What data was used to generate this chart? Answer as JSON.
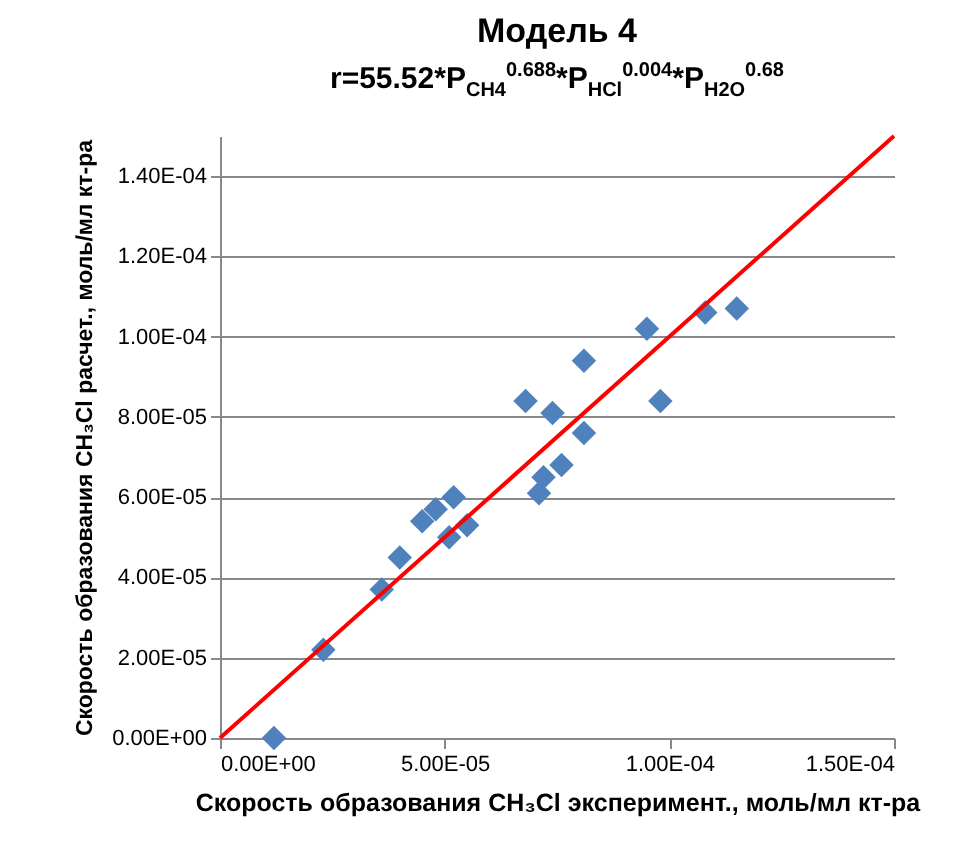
{
  "chart_data": {
    "type": "scatter",
    "title": "Модель 4",
    "subtitle": "r=55.52*P$_{CH4}$$^{0.688}$*P$_{HCl}$$^{0.004}$*P$_{H2O}$$^{0.68}$",
    "xlabel": "Скорость образования CH₃Cl эксперимент., моль/мл кт-ра",
    "ylabel": "Скорость образования CH₃Cl расчет., моль/мл кт-ра",
    "xlim": [
      0,
      0.00015
    ],
    "ylim": [
      0,
      0.00015
    ],
    "xticks": [
      {
        "value": 0,
        "label": "0.00E+00"
      },
      {
        "value": 5e-05,
        "label": "5.00E-05"
      },
      {
        "value": 0.0001,
        "label": "1.00E-04"
      },
      {
        "value": 0.00015,
        "label": "1.50E-04"
      }
    ],
    "yticks": [
      {
        "value": 0,
        "label": "0.00E+00"
      },
      {
        "value": 2e-05,
        "label": "2.00E-05"
      },
      {
        "value": 4e-05,
        "label": "4.00E-05"
      },
      {
        "value": 6e-05,
        "label": "6.00E-05"
      },
      {
        "value": 8e-05,
        "label": "8.00E-05"
      },
      {
        "value": 0.0001,
        "label": "1.00E-04"
      },
      {
        "value": 0.00012,
        "label": "1.20E-04"
      },
      {
        "value": 0.00014,
        "label": "1.40E-04"
      }
    ],
    "grid": "y",
    "series": [
      {
        "marker": "diamond",
        "color": "#4f81bd",
        "x": [
          1.2e-05,
          2.3e-05,
          3.6e-05,
          4e-05,
          4.5e-05,
          4.8e-05,
          5.2e-05,
          5.1e-05,
          5.5e-05,
          6.8e-05,
          7.1e-05,
          7.2e-05,
          7.6e-05,
          7.4e-05,
          8.1e-05,
          8.1e-05,
          9.5e-05,
          9.8e-05,
          0.000108,
          0.000115
        ],
        "values": [
          0,
          2.2e-05,
          3.7e-05,
          4.5e-05,
          5.4e-05,
          5.7e-05,
          6e-05,
          5e-05,
          5.3e-05,
          8.4e-05,
          6.1e-05,
          6.5e-05,
          6.8e-05,
          8.1e-05,
          7.6e-05,
          9.4e-05,
          0.000102,
          8.4e-05,
          0.000106,
          0.000107
        ]
      },
      {
        "type": "line",
        "marker": "none",
        "color": "#ff0000",
        "x": [
          0,
          0.00015
        ],
        "values": [
          0,
          0.00015
        ]
      }
    ]
  }
}
